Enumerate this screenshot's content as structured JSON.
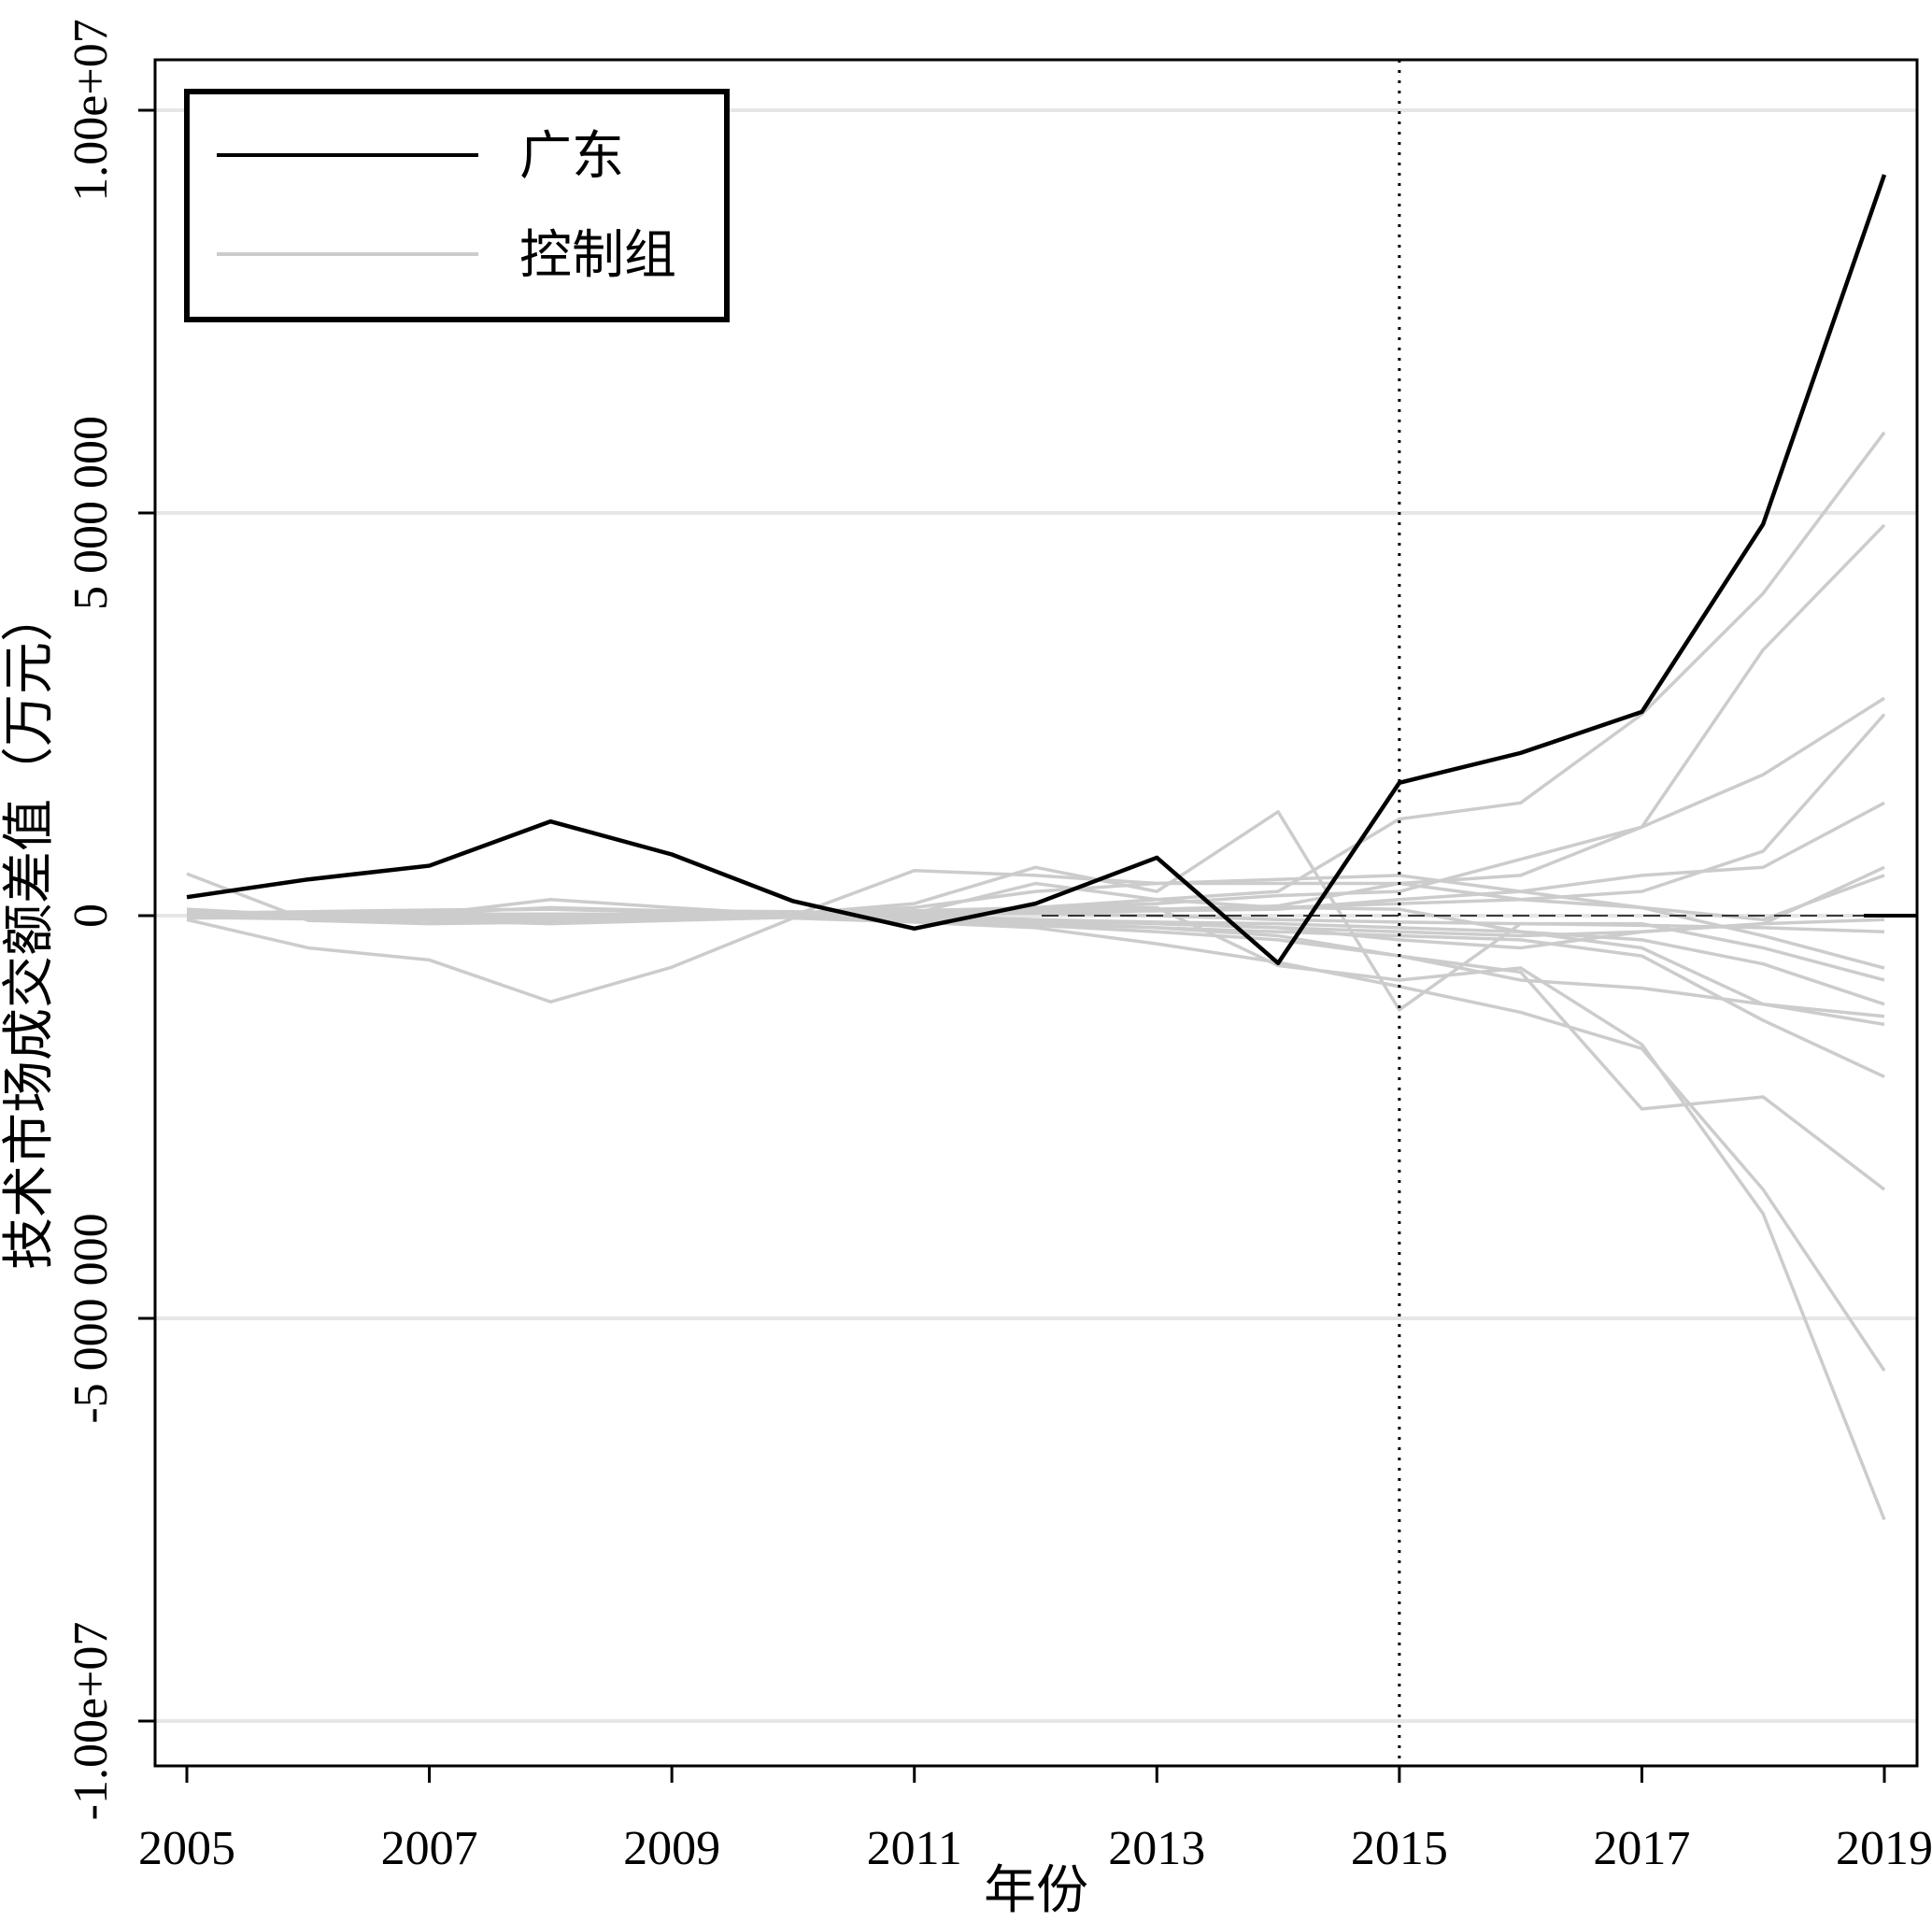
{
  "chart_data": {
    "type": "line",
    "title": "",
    "xlabel": "年份",
    "ylabel": "技术市场成交额差值（万元）",
    "xlim": [
      2005,
      2019
    ],
    "ylim": [
      -10000000,
      10000000
    ],
    "x_ticks": [
      2005,
      2007,
      2009,
      2011,
      2013,
      2015,
      2017,
      2019
    ],
    "y_ticks": [
      {
        "value": 10000000,
        "label": "1.00e+07"
      },
      {
        "value": 5000000,
        "label": "5 000 000"
      },
      {
        "value": 0,
        "label": "0"
      },
      {
        "value": -5000000,
        "label": "-5 000 000"
      },
      {
        "value": -10000000,
        "label": "-1.00e+07"
      }
    ],
    "grid": "horizontal",
    "reference_lines": {
      "treatment_year": 2015,
      "zero": 0
    },
    "legend": {
      "position": "top-left",
      "entries": [
        {
          "label": "广东",
          "color": "#000000"
        },
        {
          "label": "控制组",
          "color": "#cccccc"
        }
      ]
    },
    "x": [
      2005,
      2006,
      2007,
      2008,
      2009,
      2010,
      2011,
      2012,
      2013,
      2014,
      2015,
      2016,
      2017,
      2018,
      2019
    ],
    "treated": {
      "name": "广东",
      "color": "#000000",
      "values": [
        230000,
        450000,
        620000,
        1170000,
        760000,
        180000,
        -160000,
        150000,
        720000,
        -590000,
        1650000,
        2020000,
        2530000,
        4860000,
        9200000
      ]
    },
    "controls": {
      "name": "控制组",
      "color": "#cccccc",
      "series": [
        [
          520000,
          -60000,
          -100000,
          -80000,
          -50000,
          0,
          -60000,
          100000,
          100000,
          -620000,
          -800000,
          -650000,
          -1600000,
          -3700000,
          -7500000
        ],
        [
          -50000,
          -400000,
          -550000,
          -1070000,
          -640000,
          -30000,
          -80000,
          -150000,
          -350000,
          -580000,
          -880000,
          -1200000,
          -1650000,
          -3400000,
          -5650000
        ],
        [
          80000,
          0,
          30000,
          100000,
          60000,
          50000,
          20000,
          -80000,
          -150000,
          -250000,
          -500000,
          -700000,
          -2400000,
          -2250000,
          -3400000
        ],
        [
          0,
          10000,
          20000,
          0,
          0,
          20000,
          50000,
          100000,
          200000,
          300000,
          1200000,
          1400000,
          2500000,
          4000000,
          6000000
        ],
        [
          -20000,
          -30000,
          -50000,
          -60000,
          -30000,
          0,
          30000,
          50000,
          80000,
          120000,
          400000,
          500000,
          1100000,
          3300000,
          4850000
        ],
        [
          30000,
          50000,
          70000,
          80000,
          50000,
          40000,
          60000,
          100000,
          150000,
          250000,
          300000,
          700000,
          1100000,
          1750000,
          2700000
        ],
        [
          10000,
          20000,
          30000,
          10000,
          0,
          20000,
          40000,
          60000,
          80000,
          100000,
          150000,
          200000,
          300000,
          800000,
          2500000
        ],
        [
          -30000,
          -20000,
          0,
          20000,
          10000,
          0,
          20000,
          40000,
          60000,
          80000,
          200000,
          300000,
          500000,
          600000,
          1400000
        ],
        [
          0,
          0,
          10000,
          20000,
          10000,
          0,
          -20000,
          -50000,
          -100000,
          -150000,
          -300000,
          -400000,
          -200000,
          -100000,
          600000
        ],
        [
          20000,
          40000,
          60000,
          80000,
          40000,
          0,
          560000,
          500000,
          400000,
          400000,
          400000,
          200000,
          100000,
          -50000,
          500000
        ],
        [
          10000,
          10000,
          20000,
          200000,
          100000,
          10000,
          30000,
          400000,
          200000,
          100000,
          80000,
          -200000,
          -400000,
          -1100000,
          -1350000
        ],
        [
          -20000,
          -40000,
          -60000,
          -100000,
          -60000,
          -20000,
          -50000,
          -100000,
          -150000,
          -200000,
          -250000,
          -300000,
          -500000,
          -1300000,
          -2000000
        ],
        [
          0,
          -20000,
          -40000,
          -60000,
          -40000,
          -20000,
          -60000,
          -120000,
          -200000,
          -300000,
          -500000,
          -800000,
          -900000,
          -1100000,
          -1250000
        ],
        [
          40000,
          30000,
          20000,
          10000,
          20000,
          30000,
          100000,
          300000,
          400000,
          450000,
          500000,
          300000,
          100000,
          -250000,
          -650000
        ],
        [
          0,
          -10000,
          -20000,
          -30000,
          -20000,
          -10000,
          0,
          -50000,
          -80000,
          -100000,
          -150000,
          -200000,
          -300000,
          -600000,
          -1100000
        ],
        [
          10000,
          20000,
          10000,
          0,
          10000,
          20000,
          150000,
          600000,
          300000,
          1290000,
          -1170000,
          -100000,
          -100000,
          -400000,
          -800000
        ],
        [
          -10000,
          0,
          10000,
          20000,
          10000,
          0,
          20000,
          30000,
          0,
          -50000,
          -80000,
          -100000,
          -120000,
          -150000,
          -200000
        ],
        [
          0,
          -10000,
          -20000,
          -10000,
          0,
          -10000,
          -30000,
          -60000,
          -100000,
          -150000,
          -200000,
          -250000,
          -200000,
          -100000,
          -50000
        ]
      ]
    }
  }
}
